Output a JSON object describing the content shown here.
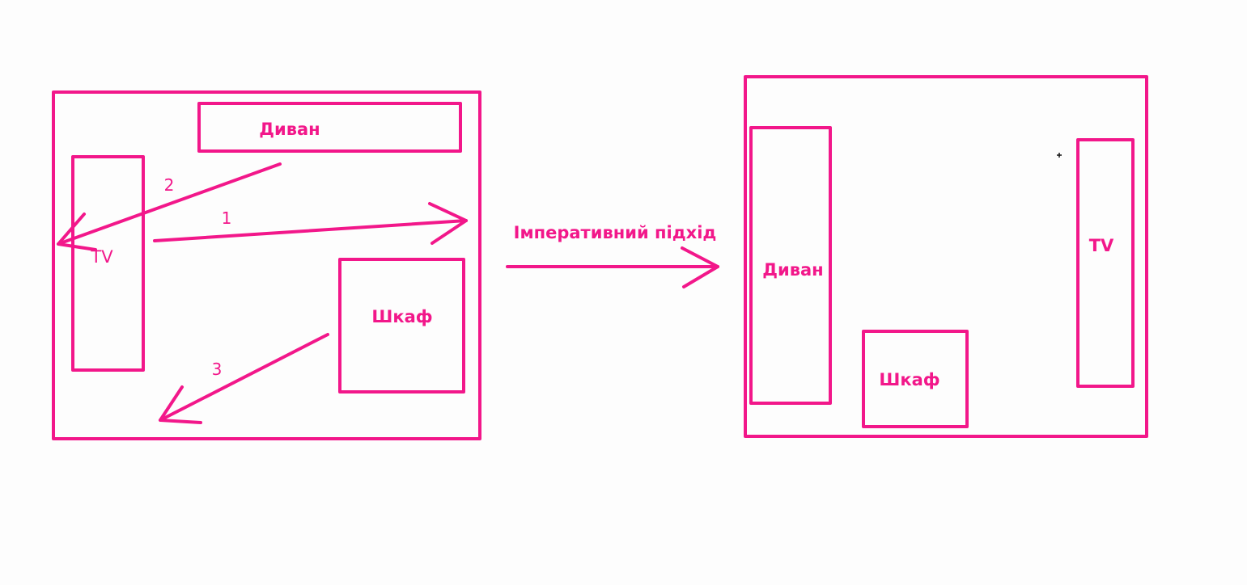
{
  "colors": {
    "ink": "#f2178a",
    "background": "#fdfdfd",
    "cursor": "#111111"
  },
  "before": {
    "sofa_label": "Диван",
    "tv_label": "TV",
    "wardrobe_label": "Шкаф",
    "steps": [
      "1",
      "2",
      "3"
    ]
  },
  "transition": {
    "label": "Імперативний підхід"
  },
  "after": {
    "sofa_label": "Диван",
    "tv_label": "TV",
    "wardrobe_label": "Шкаф"
  }
}
